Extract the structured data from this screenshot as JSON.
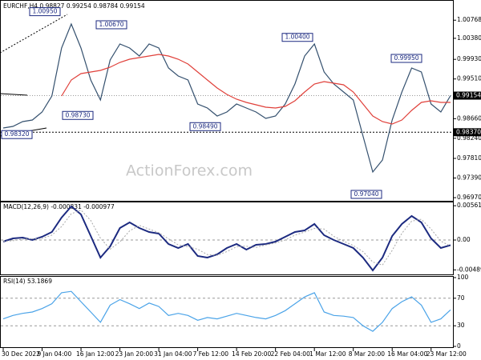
{
  "chart_data": [
    {
      "type": "line",
      "title": "EURCHF,H4 0.98827 0.99254 0.98784 0.99154",
      "watermark": "ActionForex.com",
      "ylim": [
        0.9692,
        1.012
      ],
      "yticks": [
        1.00768,
        {
          "value": 1.0038,
          "label": "1.00380"
        },
        {
          "value": 0.9993,
          "label": "0.99930"
        },
        {
          "value": 0.9951,
          "label": "0.99510"
        },
        {
          "value": 0.9866,
          "label": "0.98660"
        },
        {
          "value": 0.9824,
          "label": "0.98240"
        },
        {
          "value": 0.9781,
          "label": "0.97810"
        },
        {
          "value": 0.9739,
          "label": "0.97390"
        },
        {
          "value": 0.9697,
          "label": "0.96970"
        }
      ],
      "grid": false,
      "series": [
        {
          "color": "#34506e",
          "line_style": "solid",
          "values": [
            0.98461,
            0.98495,
            0.98598,
            0.98632,
            0.98803,
            0.99146,
            1.00173,
            1.00686,
            1.00173,
            0.99488,
            0.9906,
            0.99916,
            1.00258,
            1.00173,
            1.00002,
            1.00258,
            1.00173,
            0.99745,
            0.99574,
            0.99488,
            0.98974,
            0.98889,
            0.98718,
            0.98803,
            0.98974,
            0.98889,
            0.98803,
            0.98666,
            0.98718,
            0.98974,
            0.99402,
            1.00002,
            1.00258,
            0.99659,
            0.99402,
            0.99231,
            0.9906,
            0.9829,
            0.97519,
            0.97776,
            0.98632,
            0.99231,
            0.99745,
            0.99659,
            0.98974,
            0.98803,
            0.99154
          ]
        },
        {
          "color": "#e0403a",
          "line_style": "solid",
          "values": [
            null,
            null,
            null,
            null,
            null,
            null,
            0.99146,
            0.99488,
            0.99625,
            0.99659,
            0.99694,
            0.99762,
            0.99865,
            0.99933,
            0.99967,
            1.00002,
            1.00036,
            1.00002,
            0.99933,
            0.9983,
            0.99659,
            0.99488,
            0.99317,
            0.9918,
            0.99077,
            0.99009,
            0.98957,
            0.98906,
            0.98889,
            0.98923,
            0.99043,
            0.99231,
            0.99402,
            0.99454,
            0.9942,
            0.99385,
            0.99231,
            0.98974,
            0.98718,
            0.98598,
            0.98546,
            0.98632,
            0.98837,
            0.99009,
            0.99043,
            0.99009,
            0.99009
          ]
        }
      ],
      "last_price": {
        "value": 0.99154,
        "label": "0.99154"
      },
      "levels": [
        {
          "value": 0.9837,
          "label": "0.98370"
        }
      ],
      "annotations": [
        {
          "value": 1.0095,
          "label": "1.00950"
        },
        {
          "value": 1.0067,
          "label": "1.00670"
        },
        {
          "value": 0.9873,
          "label": "0.98730"
        },
        {
          "value": 0.9849,
          "label": "0.98490"
        },
        {
          "value": 0.9832,
          "label": "0.98320"
        },
        {
          "value": 1.004,
          "label": "1.00400"
        },
        {
          "value": 0.9995,
          "label": "0.99950"
        },
        {
          "value": 0.9704,
          "label": "0.97040"
        }
      ]
    },
    {
      "type": "line",
      "title": "MACD(12,26,9) -0.000831 -0.000977",
      "ylim": [
        -0.00563,
        0.00616
      ],
      "yticks": [
        -0.004892,
        {
          "value": 0,
          "label": "0.00"
        },
        0.005615
      ],
      "grid": true,
      "series": [
        {
          "color": "#1c2a80",
          "line_style": "solid",
          "values": [
            -0.000262,
            0.000262,
            0.000393,
            0,
            0.000524,
            0.00131,
            0.003668,
            0.005502,
            0.004192,
            0.000655,
            -0.002882,
            -0.001048,
            0.001965,
            0.002882,
            0.001965,
            0.00131,
            0.001048,
            -0.000655,
            -0.00131,
            -0.000655,
            -0.00262,
            -0.002882,
            -0.002358,
            -0.00131,
            -0.000655,
            -0.001572,
            -0.000786,
            -0.000655,
            -0.000262,
            0.000524,
            0.00131,
            0.001572,
            0.00262,
            0.000786,
            0,
            -0.000655,
            -0.00131,
            -0.002882,
            -0.004978,
            -0.002882,
            0.000655,
            0.00262,
            0.00393,
            0.002882,
            0.000262,
            -0.00131,
            -0.000831
          ]
        },
        {
          "color": "#a8a8a8",
          "line_style": "dotted",
          "values": [
            -0.0002,
            -0.00012,
            0.00015,
            0.0002,
            0.00025,
            0.0008,
            0.0022,
            0.0043,
            0.0049,
            0.0032,
            0.0003,
            -0.0015,
            -0.0003,
            0.0015,
            0.0024,
            0.0018,
            0.0012,
            0.0002,
            -0.0008,
            -0.0011,
            -0.0015,
            -0.0024,
            -0.0025,
            -0.0019,
            -0.0011,
            -0.001,
            -0.0012,
            -0.0008,
            -0.0005,
            0,
            0.0008,
            0.0013,
            0.0019,
            0.0018,
            0.0006,
            -0.0002,
            -0.0009,
            -0.0019,
            -0.0036,
            -0.0041,
            -0.0017,
            0.0011,
            0.0031,
            0.0034,
            0.0018,
            -0.0002,
            -0.000977
          ]
        }
      ]
    },
    {
      "type": "line",
      "title": "RSI(14) 53.1869",
      "ylim": [
        0,
        100
      ],
      "yticks": [
        0,
        30,
        70,
        100
      ],
      "grid": true,
      "series": [
        {
          "color": "#4aa3e8",
          "line_style": "solid",
          "values": [
            40,
            45,
            48,
            50,
            55,
            62,
            78,
            80,
            65,
            50,
            35,
            60,
            68,
            62,
            55,
            63,
            58,
            45,
            48,
            45,
            38,
            42,
            40,
            44,
            48,
            45,
            42,
            40,
            45,
            52,
            62,
            72,
            78,
            50,
            45,
            44,
            42,
            30,
            22,
            35,
            55,
            65,
            72,
            60,
            35,
            40,
            53.1869
          ]
        }
      ],
      "categories": [
        "30 Dec 2022",
        null,
        null,
        null,
        "9 Jan 04:00",
        null,
        null,
        null,
        "16 Jan 12:00",
        null,
        null,
        null,
        "23 Jan 20:00",
        null,
        null,
        null,
        "31 Jan 04:00",
        null,
        null,
        null,
        "7 Feb 12:00",
        null,
        null,
        null,
        "14 Feb 20:00",
        null,
        null,
        null,
        "22 Feb 04:00",
        null,
        null,
        null,
        "1 Mar 12:00",
        null,
        null,
        null,
        "8 Mar 20:00",
        null,
        null,
        null,
        "16 Mar 04:00",
        null,
        null,
        null,
        "23 Mar 12:00",
        null,
        null
      ]
    }
  ]
}
